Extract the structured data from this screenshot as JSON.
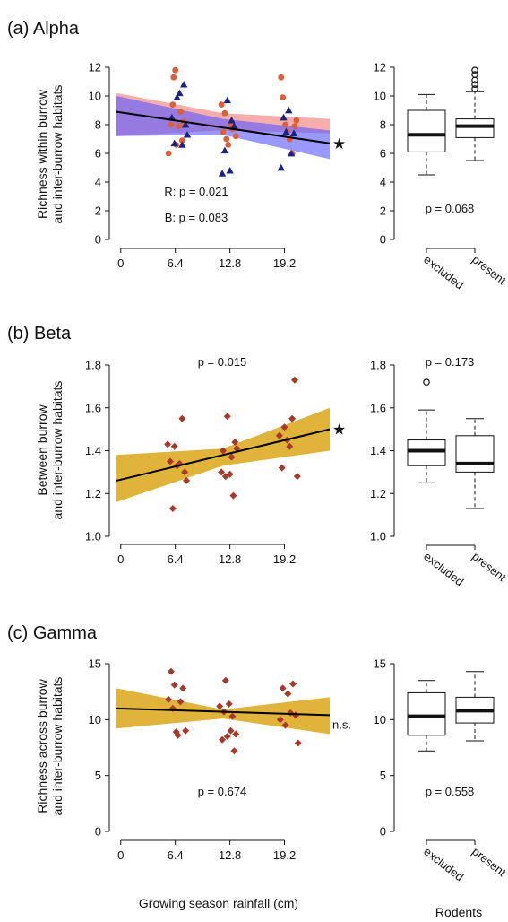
{
  "colors": {
    "red_points": "#d9603b",
    "blue_points": "#1a237e",
    "red_band": "#f47a7a",
    "blue_band": "#5a5aff",
    "gold_band": "#dba617",
    "diamond_points": "#a53a2a",
    "line": "#000000"
  },
  "icons": {
    "significance_marker": "star-icon"
  },
  "chart_data": [
    {
      "id": "alpha",
      "panel_title": "(a) Alpha",
      "type": "scatter",
      "ylabel_lines": [
        "Richness within burrow",
        "and inter-burrow habitats"
      ],
      "xlim": [
        -0.5,
        24.5
      ],
      "ylim": [
        0,
        12
      ],
      "xticks": [
        "0",
        "6.4",
        "12.8",
        "19.2"
      ],
      "xtick_values": [
        0,
        6.4,
        12.8,
        19.2
      ],
      "yticks": [
        "0",
        "2",
        "4",
        "6",
        "8",
        "10",
        "12"
      ],
      "ytick_values": [
        0,
        2,
        4,
        6,
        8,
        10,
        12
      ],
      "annotations": [
        "R: p = 0.021",
        "B: p = 0.083"
      ],
      "end_marker": "★",
      "fit": {
        "x": [
          -0.5,
          24.5
        ],
        "y": [
          8.9,
          6.7
        ]
      },
      "bands": [
        {
          "color": "red",
          "x": [
            -0.5,
            12,
            24.5
          ],
          "upper": [
            10.2,
            8.8,
            8.4
          ],
          "lower": [
            7.2,
            7.6,
            7.4
          ]
        },
        {
          "color": "blue",
          "x": [
            -0.5,
            12,
            24.5
          ],
          "upper": [
            10.0,
            8.4,
            7.6
          ],
          "lower": [
            7.2,
            7.3,
            5.6
          ]
        }
      ],
      "series": [
        {
          "marker": "circle",
          "x": [
            5.6,
            5.9,
            6.1,
            6.2,
            6.4,
            6.5,
            6.8,
            7.0,
            7.2,
            7.4,
            11.8,
            12.0,
            12.2,
            12.4,
            12.6,
            12.9,
            13.1,
            13.5,
            18.8,
            19.0,
            19.3,
            19.5,
            19.8,
            20.1,
            20.4,
            20.6
          ],
          "y": [
            6.0,
            8.0,
            9.4,
            11.3,
            11.8,
            6.6,
            7.9,
            8.9,
            6.9,
            8.2,
            9.4,
            7.5,
            8.8,
            7.0,
            6.6,
            8.0,
            7.7,
            7.2,
            11.3,
            9.9,
            8.0,
            7.5,
            7.0,
            6.0,
            7.9,
            8.3
          ]
        },
        {
          "marker": "triangle",
          "x": [
            6.0,
            6.3,
            6.6,
            6.9,
            7.2,
            7.4,
            7.6,
            7.8,
            11.9,
            12.2,
            12.5,
            12.8,
            13.0,
            13.3,
            18.8,
            19.1,
            19.4,
            19.7,
            20.0,
            20.3
          ],
          "y": [
            8.5,
            6.7,
            9.9,
            10.2,
            6.6,
            10.8,
            8.0,
            7.3,
            4.6,
            6.2,
            9.7,
            4.8,
            8.3,
            7.9,
            5.0,
            8.5,
            7.5,
            9.0,
            6.0,
            7.4
          ]
        }
      ]
    },
    {
      "id": "alpha-box",
      "type": "box",
      "categories": [
        "excluded",
        "present"
      ],
      "ylim": [
        0,
        12
      ],
      "yticks": [
        "0",
        "2",
        "4",
        "6",
        "8",
        "10",
        "12"
      ],
      "ytick_values": [
        0,
        2,
        4,
        6,
        8,
        10,
        12
      ],
      "annotation": "p = 0.068",
      "boxes": [
        {
          "min": 4.5,
          "q1": 6.1,
          "median": 7.3,
          "q3": 9.0,
          "max": 10.1,
          "outliers": []
        },
        {
          "min": 5.5,
          "q1": 7.1,
          "median": 7.9,
          "q3": 8.4,
          "max": 10.3,
          "outliers": [
            10.5,
            10.8,
            11.1,
            11.5,
            11.8
          ]
        }
      ]
    },
    {
      "id": "beta",
      "panel_title": "(b) Beta",
      "type": "scatter",
      "ylabel_lines": [
        "Between burrow",
        "and inter-burrow habitats"
      ],
      "xlim": [
        -0.5,
        24.5
      ],
      "ylim": [
        1.0,
        1.8
      ],
      "xticks": [
        "0",
        "6.4",
        "12.8",
        "19.2"
      ],
      "xtick_values": [
        0,
        6.4,
        12.8,
        19.2
      ],
      "yticks": [
        "1.0",
        "1.2",
        "1.4",
        "1.6",
        "1.8"
      ],
      "ytick_values": [
        1.0,
        1.2,
        1.4,
        1.6,
        1.8
      ],
      "annotations": [
        "p = 0.015"
      ],
      "end_marker": "★",
      "fit": {
        "x": [
          -0.5,
          24.5
        ],
        "y": [
          1.26,
          1.5
        ]
      },
      "bands": [
        {
          "color": "gold",
          "x": [
            -0.5,
            12,
            24.5
          ],
          "upper": [
            1.38,
            1.41,
            1.6
          ],
          "lower": [
            1.16,
            1.33,
            1.4
          ]
        }
      ],
      "series": [
        {
          "marker": "diamond",
          "x": [
            5.5,
            5.8,
            6.1,
            6.3,
            6.6,
            6.9,
            7.2,
            7.5,
            7.7,
            11.8,
            12.0,
            12.3,
            12.5,
            12.8,
            13.0,
            13.2,
            13.4,
            13.6,
            18.6,
            18.9,
            19.2,
            19.5,
            19.8,
            20.1,
            20.4,
            20.7
          ],
          "y": [
            1.43,
            1.35,
            1.13,
            1.42,
            1.33,
            1.34,
            1.55,
            1.3,
            1.26,
            1.3,
            1.4,
            1.28,
            1.56,
            1.29,
            1.37,
            1.19,
            1.44,
            1.41,
            1.47,
            1.32,
            1.51,
            1.45,
            1.42,
            1.55,
            1.73,
            1.28
          ]
        }
      ]
    },
    {
      "id": "beta-box",
      "type": "box",
      "categories": [
        "excluded",
        "present"
      ],
      "ylim": [
        1.0,
        1.8
      ],
      "yticks": [
        "1.0",
        "1.2",
        "1.4",
        "1.6",
        "1.8"
      ],
      "ytick_values": [
        1.0,
        1.2,
        1.4,
        1.6,
        1.8
      ],
      "annotation": "p = 0.173",
      "annotation_position": "top",
      "boxes": [
        {
          "min": 1.25,
          "q1": 1.33,
          "median": 1.4,
          "q3": 1.45,
          "max": 1.59,
          "outliers": [
            1.72
          ]
        },
        {
          "min": 1.13,
          "q1": 1.3,
          "median": 1.34,
          "q3": 1.47,
          "max": 1.55,
          "outliers": []
        }
      ]
    },
    {
      "id": "gamma",
      "panel_title": "(c) Gamma",
      "type": "scatter",
      "ylabel_lines": [
        "Richness across burrow",
        "and inter-burrow habitats"
      ],
      "xlabel": "Growing season rainfall (cm)",
      "xlim": [
        -0.5,
        24.5
      ],
      "ylim": [
        0,
        15
      ],
      "xticks": [
        "0",
        "6.4",
        "12.8",
        "19.2"
      ],
      "xtick_values": [
        0,
        6.4,
        12.8,
        19.2
      ],
      "yticks": [
        "0",
        "5",
        "10",
        "15"
      ],
      "ytick_values": [
        0,
        5,
        10,
        15
      ],
      "annotations": [
        "p = 0.674"
      ],
      "end_marker": "n.s.",
      "fit": {
        "x": [
          -0.5,
          24.5
        ],
        "y": [
          11.0,
          10.4
        ]
      },
      "bands": [
        {
          "color": "gold",
          "x": [
            -0.5,
            12,
            24.5
          ],
          "upper": [
            12.8,
            10.9,
            12.0
          ],
          "lower": [
            9.2,
            10.1,
            8.7
          ]
        }
      ],
      "series": [
        {
          "marker": "diamond",
          "x": [
            5.6,
            5.9,
            6.1,
            6.3,
            6.5,
            6.7,
            7.0,
            7.3,
            7.6,
            11.6,
            11.9,
            12.1,
            12.3,
            12.5,
            12.7,
            12.9,
            13.1,
            13.3,
            13.5,
            18.7,
            19.0,
            19.3,
            19.6,
            19.9,
            20.2,
            20.5,
            20.8
          ],
          "y": [
            11.8,
            14.3,
            11.0,
            13.1,
            8.9,
            8.6,
            11.6,
            12.8,
            9.0,
            11.2,
            8.2,
            10.7,
            13.5,
            8.5,
            11.4,
            9.0,
            10.3,
            7.2,
            8.7,
            10.0,
            12.8,
            9.5,
            12.3,
            10.6,
            13.2,
            10.4,
            7.9
          ]
        }
      ]
    },
    {
      "id": "gamma-box",
      "type": "box",
      "categories": [
        "excluded",
        "present"
      ],
      "xlabel": "Rodents",
      "ylim": [
        0,
        15
      ],
      "yticks": [
        "0",
        "5",
        "10",
        "15"
      ],
      "ytick_values": [
        0,
        5,
        10,
        15
      ],
      "annotation": "p = 0.558",
      "boxes": [
        {
          "min": 7.2,
          "q1": 8.6,
          "median": 10.3,
          "q3": 12.4,
          "max": 13.5,
          "outliers": []
        },
        {
          "min": 8.1,
          "q1": 9.7,
          "median": 10.8,
          "q3": 12.0,
          "max": 14.3,
          "outliers": []
        }
      ]
    }
  ]
}
